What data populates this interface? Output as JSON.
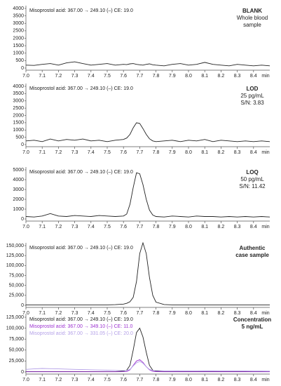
{
  "chart_data": [
    {
      "type": "line",
      "x": [
        7.0,
        7.05,
        7.1,
        7.15,
        7.2,
        7.25,
        7.3,
        7.35,
        7.4,
        7.45,
        7.5,
        7.55,
        7.6,
        7.62,
        7.64,
        7.66,
        7.68,
        7.7,
        7.72,
        7.74,
        7.76,
        7.78,
        7.8,
        7.85,
        7.9,
        7.95,
        8.0,
        8.05,
        8.1,
        8.15,
        8.2,
        8.25,
        8.3,
        8.35,
        8.4,
        8.45,
        8.5
      ],
      "series": [
        {
          "name": "Misoprostol acid: 367.00 → 249.10 (–) CE: 19.0",
          "color": "#222222",
          "values": [
            200,
            180,
            250,
            300,
            200,
            350,
            420,
            300,
            200,
            250,
            300,
            200,
            250,
            230,
            280,
            300,
            250,
            220,
            200,
            250,
            280,
            220,
            200,
            150,
            250,
            300,
            200,
            250,
            380,
            250,
            200,
            150,
            250,
            200,
            150,
            200,
            150
          ]
        }
      ],
      "annotations": [
        {
          "text": "BLANK",
          "bold": true
        },
        {
          "text": "Whole blood",
          "bold": false
        },
        {
          "text": "sample",
          "bold": false
        }
      ],
      "xlabel": "min",
      "xlim": [
        7.0,
        8.5
      ],
      "xticks": [
        {
          "value": 7.0,
          "label": "7.0"
        },
        7.1,
        7.2,
        7.3,
        7.4,
        7.5,
        7.6,
        7.7,
        7.8,
        7.9,
        {
          "value": 8.0,
          "label": "8.0"
        },
        8.1,
        8.2,
        8.3,
        8.4
      ],
      "ylim": [
        0,
        4000
      ],
      "yticks": [
        0,
        500,
        1000,
        1500,
        2000,
        2500,
        3000,
        3500,
        4000
      ]
    },
    {
      "type": "line",
      "x": [
        7.0,
        7.05,
        7.1,
        7.15,
        7.2,
        7.25,
        7.3,
        7.35,
        7.4,
        7.45,
        7.5,
        7.55,
        7.6,
        7.62,
        7.64,
        7.66,
        7.68,
        7.7,
        7.72,
        7.74,
        7.76,
        7.78,
        7.8,
        7.85,
        7.9,
        7.95,
        8.0,
        8.05,
        8.1,
        8.15,
        8.2,
        8.25,
        8.3,
        8.35,
        8.4,
        8.45,
        8.5
      ],
      "series": [
        {
          "name": "Misoprostol acid: 367.00 → 249.10 (–) CE: 19.0",
          "color": "#222222",
          "values": [
            250,
            300,
            200,
            380,
            250,
            350,
            300,
            380,
            250,
            300,
            200,
            300,
            350,
            450,
            700,
            1150,
            1500,
            1450,
            1100,
            700,
            400,
            250,
            200,
            250,
            300,
            200,
            300,
            250,
            350,
            200,
            300,
            250,
            200,
            250,
            200,
            250,
            200
          ]
        }
      ],
      "annotations": [
        {
          "text": "LOD",
          "bold": true
        },
        {
          "text": "25 pg/mL",
          "bold": false
        },
        {
          "text": "S/N: 3.83",
          "bold": false
        }
      ],
      "xlabel": "min",
      "xlim": [
        7.0,
        8.5
      ],
      "xticks": [
        {
          "value": 7.0,
          "label": "7.0"
        },
        7.1,
        7.2,
        7.3,
        7.4,
        7.5,
        7.6,
        7.7,
        7.8,
        7.9,
        {
          "value": 8.0,
          "label": "8.0"
        },
        8.1,
        8.2,
        8.3,
        8.4
      ],
      "ylim": [
        0,
        4000
      ],
      "yticks": [
        0,
        500,
        1000,
        1500,
        2000,
        2500,
        3000,
        3500,
        4000
      ]
    },
    {
      "type": "line",
      "x": [
        7.0,
        7.05,
        7.1,
        7.15,
        7.2,
        7.25,
        7.3,
        7.35,
        7.4,
        7.45,
        7.5,
        7.55,
        7.6,
        7.62,
        7.64,
        7.66,
        7.68,
        7.7,
        7.72,
        7.74,
        7.76,
        7.78,
        7.8,
        7.85,
        7.9,
        7.95,
        8.0,
        8.05,
        8.1,
        8.15,
        8.2,
        8.25,
        8.3,
        8.35,
        8.4,
        8.45,
        8.5
      ],
      "series": [
        {
          "name": "Misoprostol acid: 367.00 → 249.10 (–) CE: 19.0",
          "color": "#222222",
          "values": [
            250,
            200,
            300,
            550,
            300,
            250,
            350,
            300,
            250,
            350,
            300,
            250,
            300,
            500,
            1500,
            3200,
            4700,
            4600,
            3500,
            2000,
            900,
            400,
            250,
            200,
            300,
            250,
            200,
            300,
            250,
            250,
            200,
            250,
            200,
            250,
            200,
            250,
            200
          ]
        }
      ],
      "annotations": [
        {
          "text": "LOQ",
          "bold": true
        },
        {
          "text": "50 pg/mL",
          "bold": false
        },
        {
          "text": "S/N: 11.42",
          "bold": false
        }
      ],
      "xlabel": "min",
      "xlim": [
        7.0,
        8.5
      ],
      "xticks": [
        {
          "value": 7.0,
          "label": "7.0"
        },
        7.1,
        7.2,
        7.3,
        7.4,
        7.5,
        7.6,
        7.7,
        7.8,
        7.9,
        {
          "value": 8.0,
          "label": "8.0"
        },
        8.1,
        8.2,
        8.3,
        8.4
      ],
      "ylim": [
        0,
        5000
      ],
      "yticks": [
        0,
        1000,
        2000,
        3000,
        4000,
        5000
      ]
    },
    {
      "type": "line",
      "x": [
        7.0,
        7.05,
        7.1,
        7.15,
        7.2,
        7.25,
        7.3,
        7.35,
        7.4,
        7.45,
        7.5,
        7.55,
        7.6,
        7.62,
        7.64,
        7.66,
        7.68,
        7.7,
        7.72,
        7.74,
        7.76,
        7.78,
        7.8,
        7.85,
        7.9,
        7.95,
        8.0,
        8.05,
        8.1,
        8.15,
        8.2,
        8.25,
        8.3,
        8.35,
        8.4,
        8.45,
        8.5
      ],
      "series": [
        {
          "name": "Misoprostol acid: 367.00 → 249.10 (–) CE: 19.0",
          "color": "#222222",
          "values": [
            1000,
            1000,
            1000,
            1000,
            1000,
            1000,
            1000,
            1000,
            1000,
            1000,
            1000,
            1500,
            3000,
            5000,
            9000,
            20000,
            60000,
            130000,
            157000,
            130000,
            70000,
            25000,
            8000,
            2000,
            1000,
            1000,
            1000,
            1000,
            1000,
            1000,
            1000,
            1000,
            1000,
            1000,
            1000,
            1000,
            1000
          ]
        }
      ],
      "annotations": [
        {
          "text": "Authentic",
          "bold": true
        },
        {
          "text": "case sample",
          "bold": true
        }
      ],
      "xlabel": "min",
      "xlim": [
        7.0,
        8.5
      ],
      "xticks": [
        {
          "value": 7.0,
          "label": "7.0"
        },
        7.1,
        7.2,
        7.3,
        7.4,
        7.5,
        7.6,
        7.7,
        7.8,
        7.9,
        {
          "value": 8.0,
          "label": "8.0"
        },
        8.1,
        8.2,
        8.3,
        8.4
      ],
      "ylim": [
        0,
        150000
      ],
      "yticks": [
        0,
        {
          "value": 25000,
          "label": "25,000"
        },
        {
          "value": 50000,
          "label": "50,000"
        },
        {
          "value": 75000,
          "label": "75,000"
        },
        {
          "value": 100000,
          "label": "100,000"
        },
        {
          "value": 125000,
          "label": "125,000"
        },
        {
          "value": 150000,
          "label": "150,000"
        }
      ]
    },
    {
      "type": "line",
      "x": [
        7.0,
        7.05,
        7.1,
        7.15,
        7.2,
        7.25,
        7.3,
        7.35,
        7.4,
        7.45,
        7.5,
        7.55,
        7.6,
        7.62,
        7.64,
        7.66,
        7.68,
        7.7,
        7.72,
        7.74,
        7.76,
        7.78,
        7.8,
        7.85,
        7.9,
        7.95,
        8.0,
        8.05,
        8.1,
        8.15,
        8.2,
        8.25,
        8.3,
        8.35,
        8.4,
        8.45,
        8.5
      ],
      "series": [
        {
          "name": "Misoprostol acid: 367.00 → 249.10 (–) CE: 19.0",
          "color": "#222222",
          "values": [
            1000,
            1000,
            1000,
            1000,
            1000,
            1000,
            1000,
            1000,
            1000,
            1000,
            1000,
            1000,
            2000,
            4000,
            15000,
            50000,
            90000,
            100000,
            80000,
            45000,
            15000,
            4000,
            2000,
            1000,
            1000,
            1000,
            1000,
            1000,
            1000,
            1000,
            1000,
            1000,
            1000,
            1000,
            1000,
            1000,
            1000
          ]
        },
        {
          "name": "Misoprostol acid: 367.00 → 349.10 (–) CE: 11.0",
          "color": "#9b30d0",
          "values": [
            500,
            500,
            500,
            500,
            500,
            500,
            500,
            500,
            500,
            500,
            500,
            500,
            600,
            1000,
            5000,
            15000,
            25000,
            28000,
            22000,
            12000,
            5000,
            1500,
            800,
            500,
            500,
            500,
            500,
            500,
            500,
            500,
            500,
            500,
            500,
            500,
            500,
            500,
            500
          ]
        },
        {
          "name": "Misoprostol acid: 367.00 → 331.05 (–) CE: 20.0",
          "color": "#b4a0e8",
          "values": [
            6000,
            7000,
            8000,
            7500,
            7000,
            6500,
            6000,
            5500,
            5000,
            4500,
            4000,
            3500,
            3000,
            3500,
            6000,
            14000,
            21000,
            24000,
            20000,
            12000,
            6000,
            3500,
            3000,
            2800,
            2700,
            2600,
            2500,
            2500,
            2400,
            2400,
            2300,
            2300,
            2200,
            2200,
            2100,
            2100,
            2000
          ]
        }
      ],
      "annotations": [
        {
          "text": "Concentration",
          "bold": true
        },
        {
          "text": "5 ng/mL",
          "bold": true
        }
      ],
      "xlabel": "min",
      "xlim": [
        7.0,
        8.5
      ],
      "xticks": [
        {
          "value": 7.0,
          "label": "7.0"
        },
        7.1,
        7.2,
        7.3,
        7.4,
        7.5,
        7.6,
        7.7,
        7.8,
        7.9,
        {
          "value": 8.0,
          "label": "8.0"
        },
        8.1,
        8.2,
        8.3,
        8.4
      ],
      "ylim": [
        0,
        125000
      ],
      "yticks": [
        0,
        {
          "value": 25000,
          "label": "25,000"
        },
        {
          "value": 50000,
          "label": "50,000"
        },
        {
          "value": 75000,
          "label": "75,000"
        },
        {
          "value": 100000,
          "label": "100,000"
        },
        {
          "value": 125000,
          "label": "125,000"
        }
      ]
    }
  ]
}
